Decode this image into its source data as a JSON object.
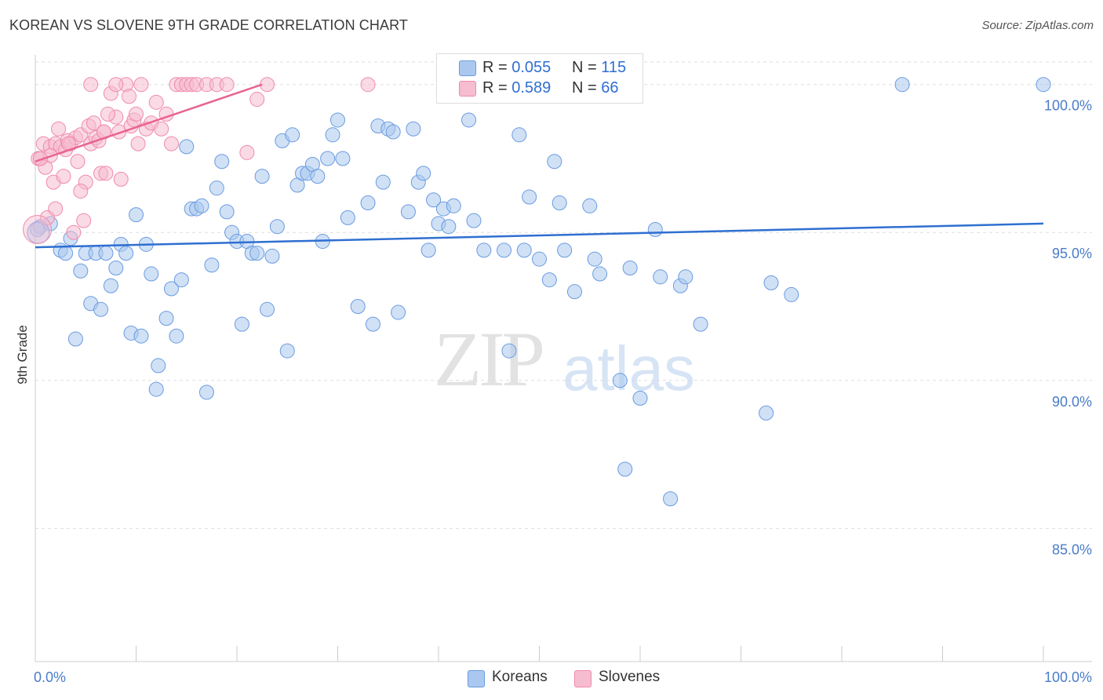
{
  "header": {
    "title": "KOREAN VS SLOVENE 9TH GRADE CORRELATION CHART",
    "source": "Source: ZipAtlas.com"
  },
  "watermark": {
    "zip": "ZIP",
    "atlas": "atlas"
  },
  "colors": {
    "blue_fill": "#aac8ef",
    "blue_stroke": "#6a9be0",
    "blue_line": "#2f6fd1",
    "pink_fill": "#f6bcd0",
    "pink_stroke": "#ef8aac",
    "pink_line": "#e8638f",
    "grid": "#dddddd",
    "tick_text": "#4a7cc9"
  },
  "legend": {
    "rows": [
      {
        "r_label": "R =",
        "r_value": "0.055",
        "n_label": "N =",
        "n_value": "115"
      },
      {
        "r_label": "R =",
        "r_value": "0.589",
        "n_label": "N =",
        "n_value": "66"
      }
    ]
  },
  "bottom_legend": {
    "koreans": "Koreans",
    "slovenes": "Slovenes"
  },
  "chart_data": {
    "type": "scatter",
    "title": "KOREAN VS SLOVENE 9TH GRADE CORRELATION CHART",
    "xlabel": "",
    "ylabel": "9th Grade",
    "xlim": [
      0,
      100
    ],
    "ylim": [
      80.5,
      101
    ],
    "x_tick_labels": [
      "0.0%",
      "100.0%"
    ],
    "y_ticks": [
      85,
      90,
      95,
      100
    ],
    "y_tick_labels": [
      "85.0%",
      "90.0%",
      "95.0%",
      "100.0%"
    ],
    "grid": true,
    "series": [
      {
        "name": "Koreans",
        "r": 0.055,
        "n": 115,
        "trend": {
          "x": [
            0,
            100
          ],
          "y": [
            94.5,
            95.3
          ]
        },
        "points": [
          [
            0.5,
            95.2
          ],
          [
            1.5,
            95.3
          ],
          [
            2.5,
            94.4
          ],
          [
            3,
            94.3
          ],
          [
            3.5,
            94.8
          ],
          [
            4,
            91.4
          ],
          [
            4.5,
            93.7
          ],
          [
            5,
            94.3
          ],
          [
            5.5,
            92.6
          ],
          [
            6,
            94.3
          ],
          [
            6.5,
            92.4
          ],
          [
            7,
            94.3
          ],
          [
            7.5,
            93.2
          ],
          [
            8,
            93.8
          ],
          [
            8.5,
            94.6
          ],
          [
            9,
            94.3
          ],
          [
            9.5,
            91.6
          ],
          [
            10,
            95.6
          ],
          [
            10.5,
            91.5
          ],
          [
            11,
            94.6
          ],
          [
            11.5,
            93.6
          ],
          [
            12,
            89.7
          ],
          [
            12.2,
            90.5
          ],
          [
            13,
            92.1
          ],
          [
            13.5,
            93.1
          ],
          [
            14,
            91.5
          ],
          [
            14.5,
            93.4
          ],
          [
            15,
            97.9
          ],
          [
            15.5,
            95.8
          ],
          [
            16,
            95.8
          ],
          [
            16.5,
            95.9
          ],
          [
            17,
            89.6
          ],
          [
            17.5,
            93.9
          ],
          [
            18,
            96.5
          ],
          [
            18.5,
            97.4
          ],
          [
            19,
            95.7
          ],
          [
            19.5,
            95.0
          ],
          [
            20,
            94.7
          ],
          [
            20.5,
            91.9
          ],
          [
            21,
            94.7
          ],
          [
            21.5,
            94.3
          ],
          [
            22,
            94.3
          ],
          [
            22.5,
            96.9
          ],
          [
            23,
            92.4
          ],
          [
            23.5,
            94.2
          ],
          [
            24,
            95.2
          ],
          [
            24.5,
            98.1
          ],
          [
            25,
            91.0
          ],
          [
            25.5,
            98.3
          ],
          [
            26,
            96.6
          ],
          [
            26.5,
            97.0
          ],
          [
            27,
            97.0
          ],
          [
            27.5,
            97.3
          ],
          [
            28,
            96.9
          ],
          [
            28.5,
            94.7
          ],
          [
            29,
            97.5
          ],
          [
            29.5,
            98.3
          ],
          [
            30,
            98.8
          ],
          [
            30.5,
            97.5
          ],
          [
            31,
            95.5
          ],
          [
            32,
            92.5
          ],
          [
            33,
            96.0
          ],
          [
            33.5,
            91.9
          ],
          [
            34,
            98.6
          ],
          [
            34.5,
            96.7
          ],
          [
            35,
            98.5
          ],
          [
            35.5,
            98.4
          ],
          [
            36,
            92.3
          ],
          [
            37,
            95.7
          ],
          [
            37.5,
            98.5
          ],
          [
            38,
            96.7
          ],
          [
            38.5,
            97.0
          ],
          [
            39,
            94.4
          ],
          [
            39.5,
            96.1
          ],
          [
            40,
            95.3
          ],
          [
            40.5,
            95.8
          ],
          [
            41,
            95.2
          ],
          [
            41.5,
            95.9
          ],
          [
            42,
            100.0
          ],
          [
            43,
            98.8
          ],
          [
            43.5,
            95.4
          ],
          [
            44.5,
            94.4
          ],
          [
            46.5,
            94.4
          ],
          [
            47,
            91.0
          ],
          [
            48,
            98.3
          ],
          [
            48.5,
            94.4
          ],
          [
            49,
            96.2
          ],
          [
            50,
            94.1
          ],
          [
            51,
            93.4
          ],
          [
            51.5,
            97.4
          ],
          [
            52,
            96.0
          ],
          [
            52.5,
            94.4
          ],
          [
            53.5,
            93.0
          ],
          [
            55,
            95.9
          ],
          [
            55.5,
            94.1
          ],
          [
            56,
            93.6
          ],
          [
            58,
            90.0
          ],
          [
            58.5,
            87.0
          ],
          [
            59,
            93.8
          ],
          [
            60,
            89.4
          ],
          [
            61.5,
            95.1
          ],
          [
            62,
            93.5
          ],
          [
            63,
            86.0
          ],
          [
            64,
            93.2
          ],
          [
            64.5,
            93.5
          ],
          [
            66,
            91.9
          ],
          [
            72.5,
            88.9
          ],
          [
            73,
            93.3
          ],
          [
            75,
            92.9
          ],
          [
            86,
            100.0
          ],
          [
            100,
            100.0
          ],
          [
            0.2,
            95.1
          ]
        ]
      },
      {
        "name": "Slovenes",
        "r": 0.589,
        "n": 66,
        "trend": {
          "x": [
            0,
            22.5
          ],
          "y": [
            97.4,
            100.0
          ]
        },
        "points": [
          [
            0.3,
            97.5
          ],
          [
            0.5,
            97.5
          ],
          [
            0.8,
            98.0
          ],
          [
            1,
            97.2
          ],
          [
            1.2,
            95.5
          ],
          [
            1.5,
            97.9
          ],
          [
            1.8,
            96.7
          ],
          [
            2,
            98.0
          ],
          [
            2.3,
            98.5
          ],
          [
            2.5,
            97.9
          ],
          [
            2.8,
            96.9
          ],
          [
            3,
            97.8
          ],
          [
            3.2,
            98.1
          ],
          [
            3.5,
            98.0
          ],
          [
            3.8,
            95.0
          ],
          [
            4,
            98.2
          ],
          [
            4.2,
            97.4
          ],
          [
            4.5,
            98.3
          ],
          [
            4.8,
            95.4
          ],
          [
            5,
            96.7
          ],
          [
            5.3,
            98.6
          ],
          [
            5.5,
            98.0
          ],
          [
            5.8,
            98.7
          ],
          [
            6,
            98.2
          ],
          [
            6.3,
            98.1
          ],
          [
            6.5,
            97.0
          ],
          [
            6.8,
            98.4
          ],
          [
            7,
            97.0
          ],
          [
            7.5,
            99.7
          ],
          [
            8,
            98.9
          ],
          [
            8.3,
            98.4
          ],
          [
            8.5,
            96.8
          ],
          [
            9,
            100.0
          ],
          [
            9.3,
            99.6
          ],
          [
            9.5,
            98.6
          ],
          [
            9.8,
            98.8
          ],
          [
            10.2,
            98.0
          ],
          [
            10.5,
            100.0
          ],
          [
            11,
            98.5
          ],
          [
            11.5,
            98.7
          ],
          [
            12,
            99.4
          ],
          [
            12.5,
            98.5
          ],
          [
            13,
            99.0
          ],
          [
            13.5,
            98.0
          ],
          [
            14,
            100.0
          ],
          [
            14.5,
            100.0
          ],
          [
            15,
            100.0
          ],
          [
            15.5,
            100.0
          ],
          [
            16,
            100.0
          ],
          [
            17,
            100.0
          ],
          [
            18,
            100.0
          ],
          [
            19,
            100.0
          ],
          [
            21,
            97.7
          ],
          [
            22,
            99.5
          ],
          [
            23,
            100.0
          ],
          [
            33,
            100.0
          ],
          [
            5.5,
            100.0
          ],
          [
            8,
            100.0
          ],
          [
            2,
            95.8
          ],
          [
            1.5,
            97.6
          ],
          [
            3.3,
            98.0
          ],
          [
            6.8,
            98.4
          ],
          [
            0.5,
            97.5
          ],
          [
            4.5,
            96.4
          ],
          [
            7.2,
            99.0
          ],
          [
            10,
            99.0
          ]
        ]
      }
    ]
  }
}
